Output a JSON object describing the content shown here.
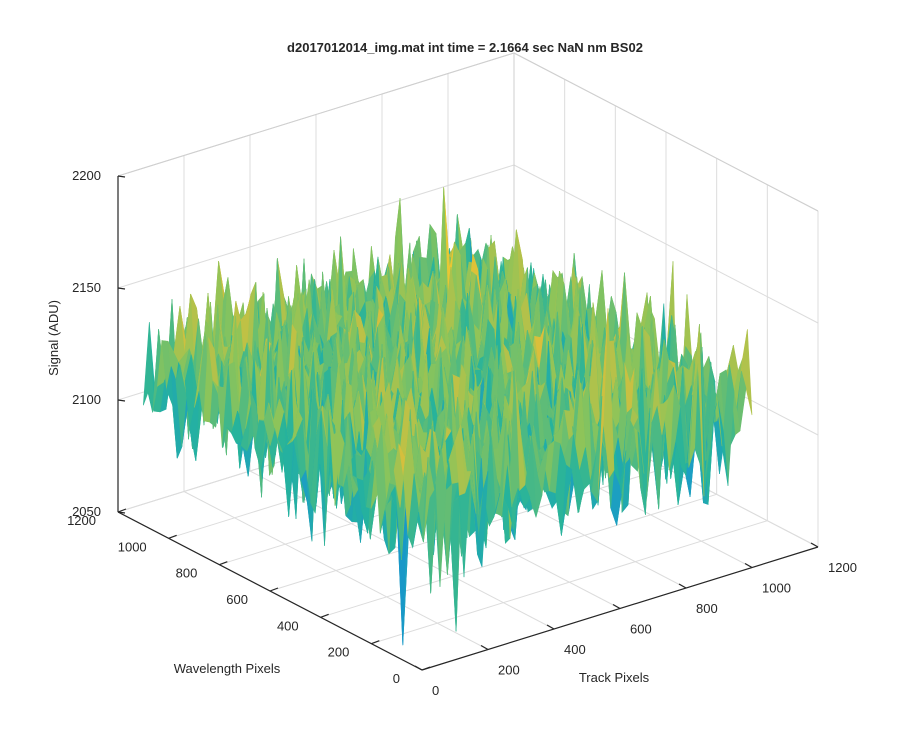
{
  "chart_data": {
    "type": "surface",
    "title": "d2017012014_img.mat int time = 2.1664 sec  NaN nm BS02",
    "xlabel": "Track Pixels",
    "ylabel": "Wavelength Pixels",
    "zlabel": "Signal (ADU)",
    "xlim": [
      0,
      1200
    ],
    "ylim": [
      0,
      1200
    ],
    "zlim": [
      2050,
      2200
    ],
    "x_ticks": [
      0,
      200,
      400,
      600,
      800,
      1000,
      1200
    ],
    "y_ticks": [
      0,
      200,
      400,
      600,
      800,
      1000,
      1200
    ],
    "z_ticks": [
      2050,
      2100,
      2150,
      2200
    ],
    "x_tick_labels": [
      "0",
      "200",
      "400",
      "600",
      "800",
      "1000",
      "1200"
    ],
    "y_tick_labels": [
      "0",
      "200",
      "400",
      "600",
      "800",
      "1000",
      "1200"
    ],
    "z_tick_labels": [
      "2050",
      "2100",
      "2150",
      "2200"
    ],
    "surface": {
      "x_range": [
        0,
        1000
      ],
      "y_range": [
        0,
        1100
      ],
      "mean_level": 2120,
      "noise_range": [
        2080,
        2160
      ],
      "colormap": [
        "#0072BD",
        "#1A9BC9",
        "#26B39C",
        "#8CC45A",
        "#D9BF3B",
        "#F5CF2C"
      ]
    },
    "grid": true,
    "box": true
  }
}
